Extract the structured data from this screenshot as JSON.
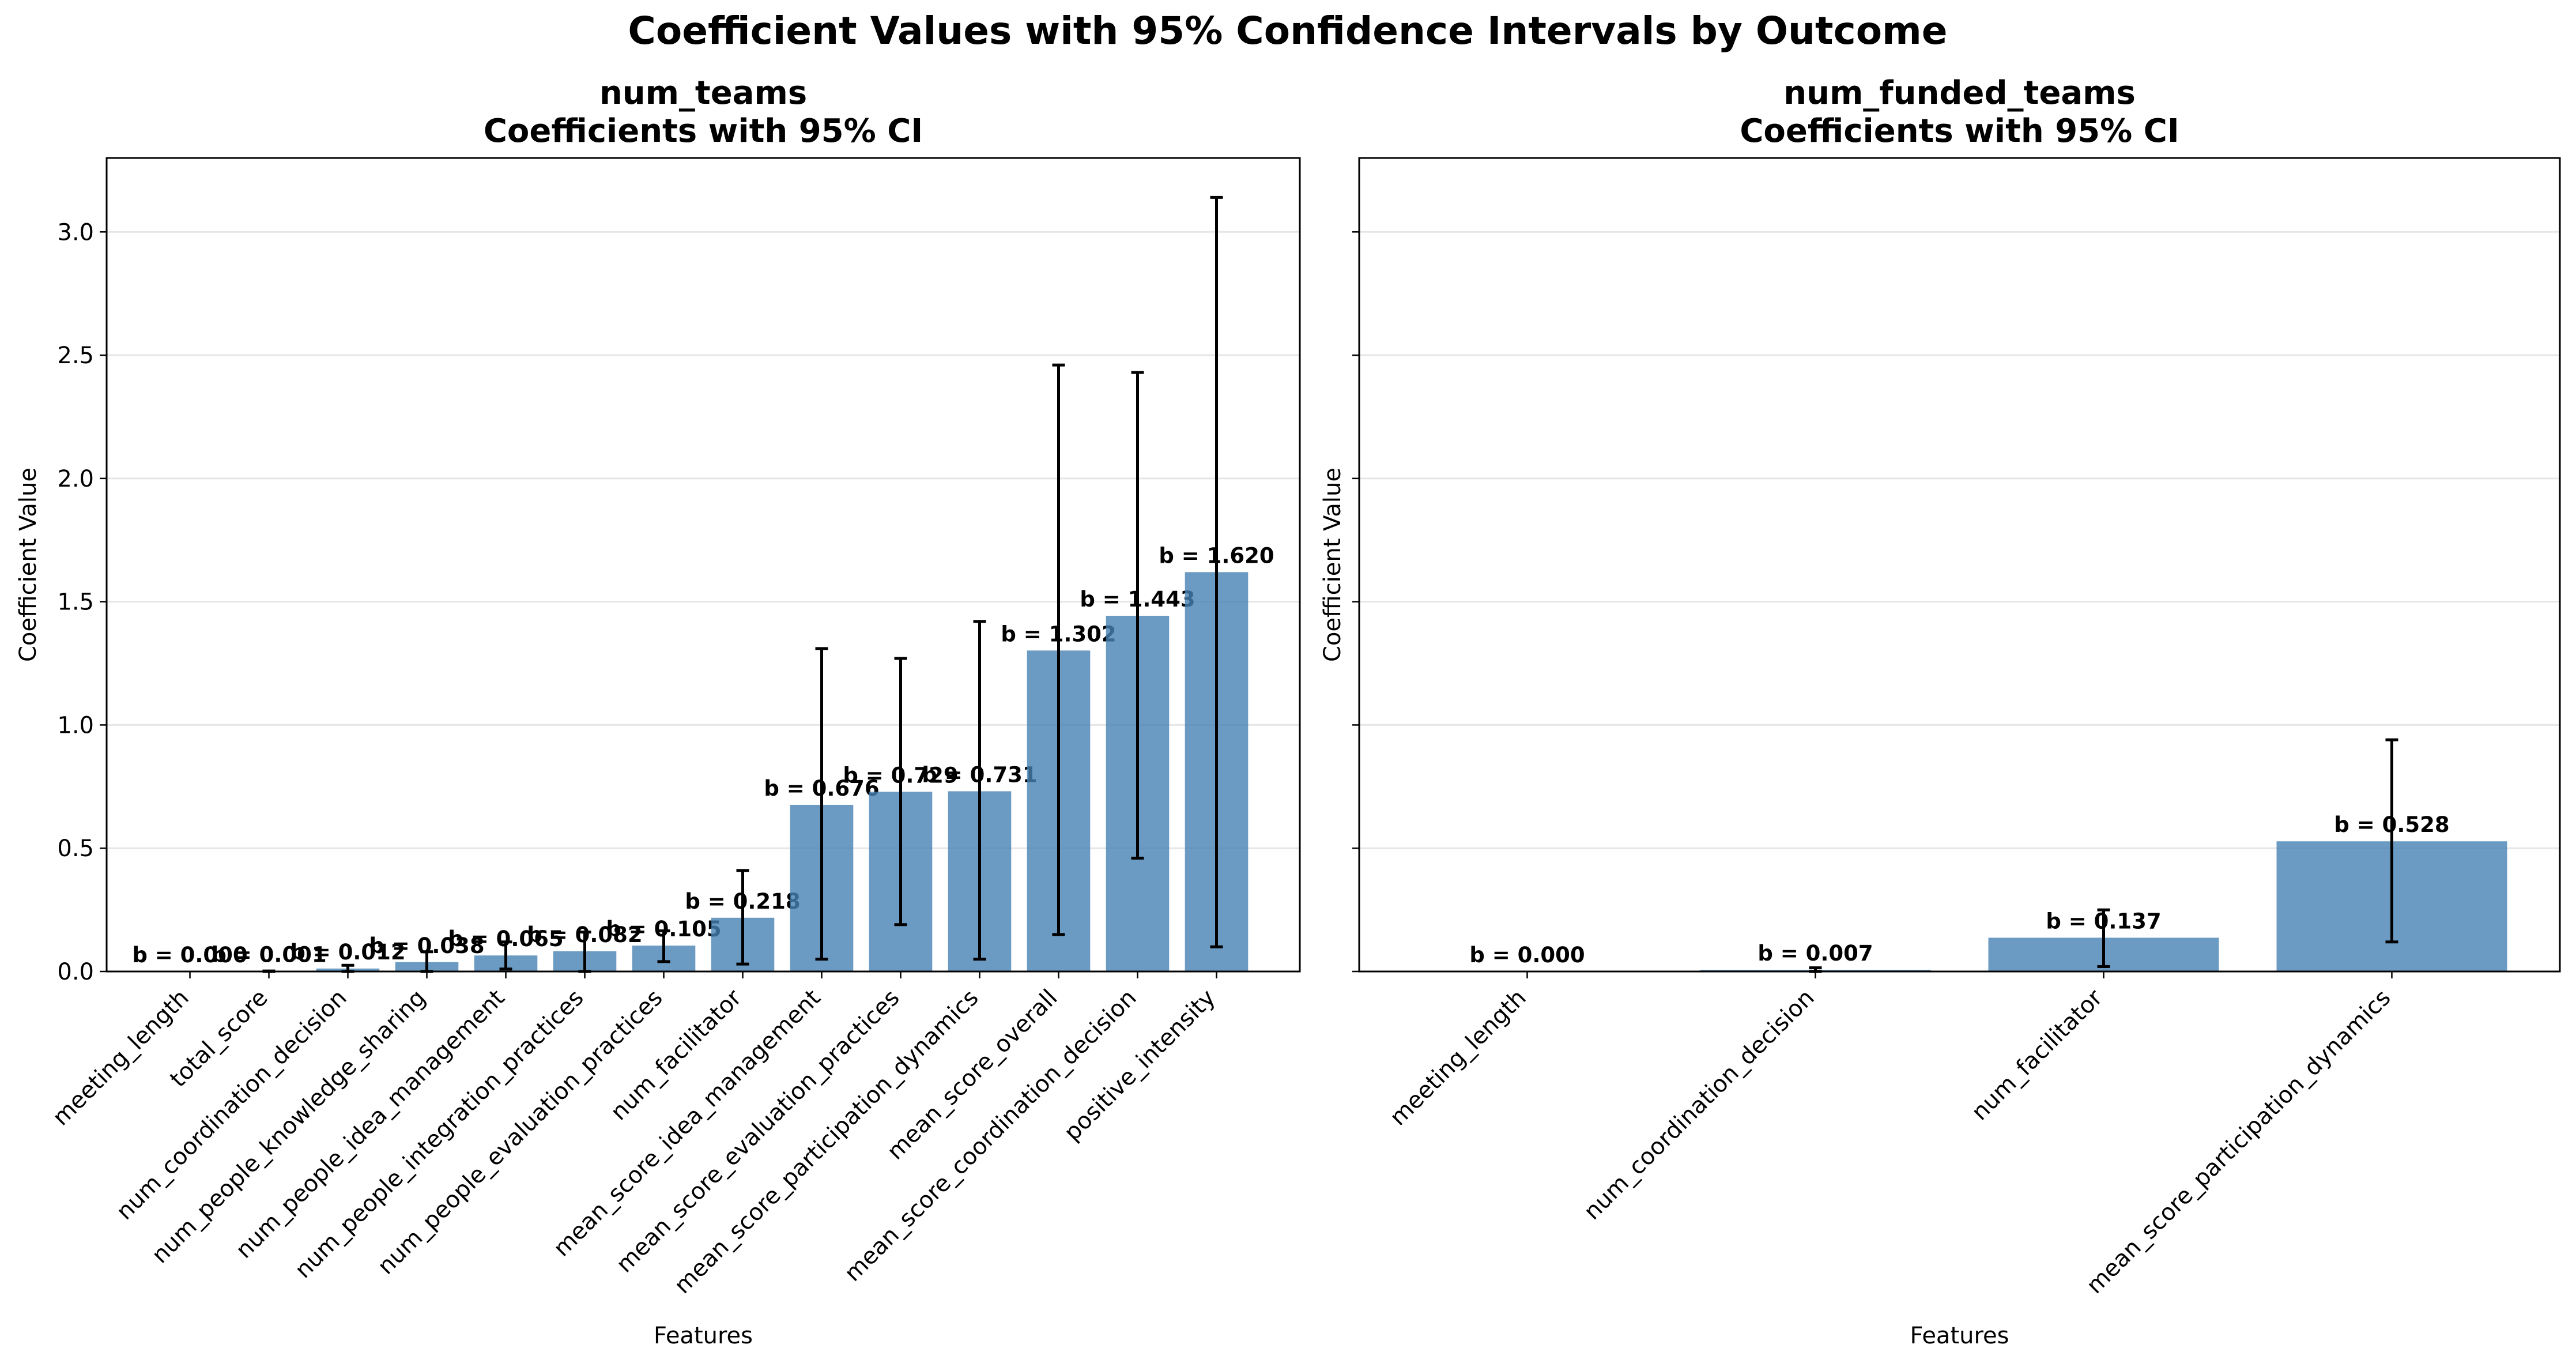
{
  "suptitle": "Coefficient Values with 95% Confidence Intervals by Outcome",
  "bar_color": "#4682b4",
  "chart_data": [
    {
      "type": "bar",
      "title": "num_teams",
      "subtitle": "Coefficients with 95% CI",
      "xlabel": "Features",
      "ylabel": "Coefficient Value",
      "ylim": [
        0,
        3.3
      ],
      "yticks": [
        "0.0",
        "0.5",
        "1.0",
        "1.5",
        "2.0",
        "2.5",
        "3.0"
      ],
      "grid": "horizontal",
      "categories": [
        "meeting_length",
        "total_score",
        "num_coordination_decision",
        "num_people_knowledge_sharing",
        "num_people_idea_management",
        "num_people_integration_practices",
        "num_people_evaluation_practices",
        "num_facilitator",
        "mean_score_idea_management",
        "mean_score_evaluation_practices",
        "mean_score_participation_dynamics",
        "mean_score_overall",
        "mean_score_coordination_decision",
        "positive_intensity"
      ],
      "values": [
        0.0,
        0.001,
        0.012,
        0.038,
        0.065,
        0.082,
        0.105,
        0.218,
        0.676,
        0.729,
        0.731,
        1.302,
        1.443,
        1.62
      ],
      "ci_low": [
        0.0,
        0.0,
        0.0,
        0.0,
        0.01,
        0.0,
        0.04,
        0.03,
        0.05,
        0.19,
        0.05,
        0.15,
        0.46,
        0.1
      ],
      "ci_high": [
        0.0,
        0.002,
        0.025,
        0.08,
        0.12,
        0.16,
        0.165,
        0.41,
        1.31,
        1.27,
        1.42,
        2.46,
        2.43,
        3.14
      ],
      "labels": [
        "b = 0.000",
        "b = 0.001",
        "b = 0.012",
        "b = 0.038",
        "b = 0.065",
        "b = 0.082",
        "b = 0.105",
        "b = 0.218",
        "b = 0.676",
        "b = 0.729",
        "b = 0.731",
        "b = 1.302",
        "b = 1.443",
        "b = 1.620"
      ]
    },
    {
      "type": "bar",
      "title": "num_funded_teams",
      "subtitle": "Coefficients with 95% CI",
      "xlabel": "Features",
      "ylabel": "Coefficient Value",
      "ylim": [
        0,
        3.3
      ],
      "grid": "horizontal",
      "categories": [
        "meeting_length",
        "num_coordination_decision",
        "num_facilitator",
        "mean_score_participation_dynamics"
      ],
      "values": [
        0.0,
        0.007,
        0.137,
        0.528
      ],
      "ci_low": [
        0.0,
        0.0,
        0.02,
        0.12
      ],
      "ci_high": [
        0.0,
        0.015,
        0.25,
        0.94
      ],
      "labels": [
        "b = 0.000",
        "b = 0.007",
        "b = 0.137",
        "b = 0.528"
      ]
    }
  ]
}
